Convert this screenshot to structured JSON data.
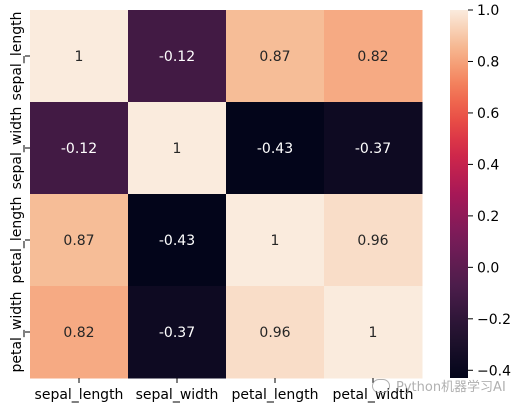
{
  "chart_data": {
    "type": "heatmap",
    "title": "",
    "xlabel": "",
    "ylabel": "",
    "x_categories": [
      "sepal_length",
      "sepal_width",
      "petal_length",
      "petal_width"
    ],
    "y_categories": [
      "sepal_length",
      "sepal_width",
      "petal_length",
      "petal_width"
    ],
    "values": [
      [
        1,
        -0.12,
        0.87,
        0.82
      ],
      [
        -0.12,
        1,
        -0.43,
        -0.37
      ],
      [
        0.87,
        -0.43,
        1,
        0.96
      ],
      [
        0.82,
        -0.37,
        0.96,
        1
      ]
    ],
    "cell_labels": [
      [
        "1",
        "-0.12",
        "0.87",
        "0.82"
      ],
      [
        "-0.12",
        "1",
        "-0.43",
        "-0.37"
      ],
      [
        "0.87",
        "-0.43",
        "1",
        "0.96"
      ],
      [
        "0.82",
        "-0.37",
        "0.96",
        "1"
      ]
    ],
    "colorbar": {
      "vmin": -0.43,
      "vmax": 1.0,
      "ticks": [
        -0.4,
        -0.2,
        0.0,
        0.2,
        0.4,
        0.6,
        0.8,
        1.0
      ],
      "tick_labels": [
        "−0.4",
        "−0.2",
        "0.0",
        "0.2",
        "0.4",
        "0.6",
        "0.8",
        "1.0"
      ],
      "colormap": "rocket"
    },
    "grid": false
  },
  "watermark": {
    "text": "Python机器学习AI",
    "icon": "wechat-icon"
  }
}
